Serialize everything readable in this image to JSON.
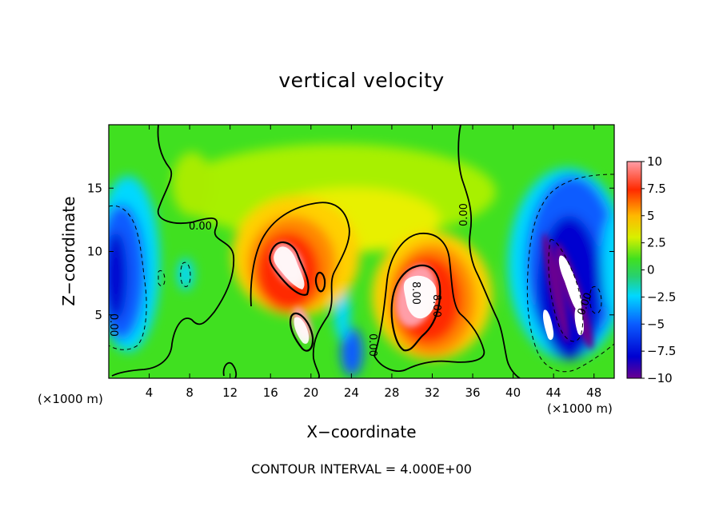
{
  "chart_data": {
    "type": "heatmap",
    "title": "vertical velocity",
    "xlabel": "X−coordinate",
    "ylabel": "Z−coordinate",
    "x_unit_label": "(×1000 m)",
    "x_ticks": [
      "4",
      "8",
      "12",
      "16",
      "20",
      "24",
      "28",
      "32",
      "36",
      "40",
      "44",
      "48"
    ],
    "x_tick_values": [
      4,
      8,
      12,
      16,
      20,
      24,
      28,
      32,
      36,
      40,
      44,
      48
    ],
    "y_ticks": [
      "5",
      "10",
      "15"
    ],
    "y_tick_values": [
      5,
      10,
      15
    ],
    "xlim": [
      0,
      50
    ],
    "ylim": [
      0,
      20
    ],
    "colorbar_ticks": [
      "10",
      "7.5",
      "5",
      "2.5",
      "0",
      "−2.5",
      "−5",
      "−7.5",
      "−10"
    ],
    "colorbar_values": [
      10,
      7.5,
      5,
      2.5,
      0,
      -2.5,
      -5,
      -7.5,
      -10
    ],
    "colorbar_range": [
      -10,
      10
    ],
    "contour_labels": [
      "0.00",
      "8.00",
      "0.00",
      "8.00",
      "0.00",
      "0.00",
      "0.00"
    ],
    "footer": "CONTOUR INTERVAL = 4.000E+00",
    "features": [
      {
        "kind": "updraft",
        "x": 19,
        "z": 7.5,
        "peak": 10
      },
      {
        "kind": "updraft",
        "x": 30.5,
        "z": 6,
        "peak": 10
      },
      {
        "kind": "downdraft",
        "x": 46,
        "z": 7,
        "peak": -10
      },
      {
        "kind": "downdraft",
        "x": 1,
        "z": 6,
        "peak": -8
      }
    ]
  },
  "colors": {
    "colorbar_stops": [
      "#6a0090",
      "#0000d0",
      "#0a5cff",
      "#00d8ff",
      "#28d070",
      "#40e020",
      "#d8f000",
      "#ffb800",
      "#ff2a00",
      "#ff9ea8"
    ]
  }
}
